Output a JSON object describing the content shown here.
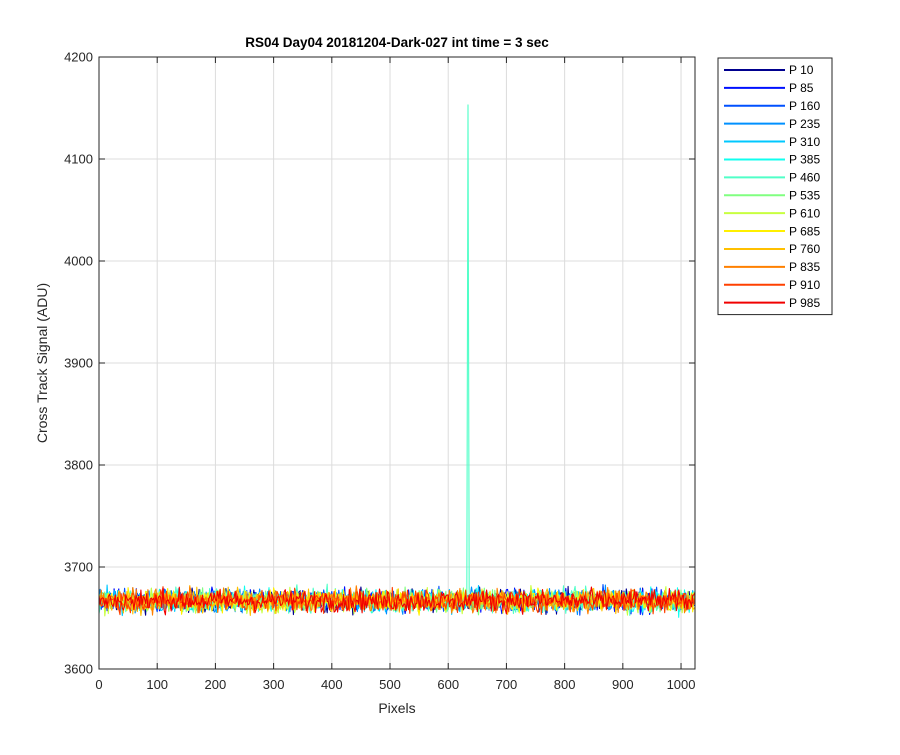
{
  "chart_data": {
    "type": "line",
    "title": "RS04 Day04 20181204-Dark-027 int time = 3 sec",
    "xlabel": "Pixels",
    "ylabel": "Cross Track Signal (ADU)",
    "xlim": [
      0,
      1024
    ],
    "ylim": [
      3600,
      4200
    ],
    "xticks": [
      0,
      100,
      200,
      300,
      400,
      500,
      600,
      700,
      800,
      900,
      1000
    ],
    "yticks": [
      3600,
      3700,
      3800,
      3900,
      4000,
      4100,
      4200
    ],
    "grid": true,
    "legend_position": "outside-top-right",
    "baseline": 3667,
    "noise_range": [
      3638,
      3695
    ],
    "spike": {
      "series": "P 460",
      "x": 634,
      "y": 4153
    },
    "series": [
      {
        "name": "P 10",
        "color": "#00008F"
      },
      {
        "name": "P 85",
        "color": "#0010FF"
      },
      {
        "name": "P 160",
        "color": "#0050FF"
      },
      {
        "name": "P 235",
        "color": "#0090FF"
      },
      {
        "name": "P 310",
        "color": "#00C8FF"
      },
      {
        "name": "P 385",
        "color": "#10FFEF"
      },
      {
        "name": "P 460",
        "color": "#50FFC8"
      },
      {
        "name": "P 535",
        "color": "#80FF80"
      },
      {
        "name": "P 610",
        "color": "#C8FF40"
      },
      {
        "name": "P 685",
        "color": "#FFF000"
      },
      {
        "name": "P 760",
        "color": "#FFC000"
      },
      {
        "name": "P 835",
        "color": "#FF8000"
      },
      {
        "name": "P 910",
        "color": "#FF4000"
      },
      {
        "name": "P 985",
        "color": "#F00000"
      }
    ]
  }
}
